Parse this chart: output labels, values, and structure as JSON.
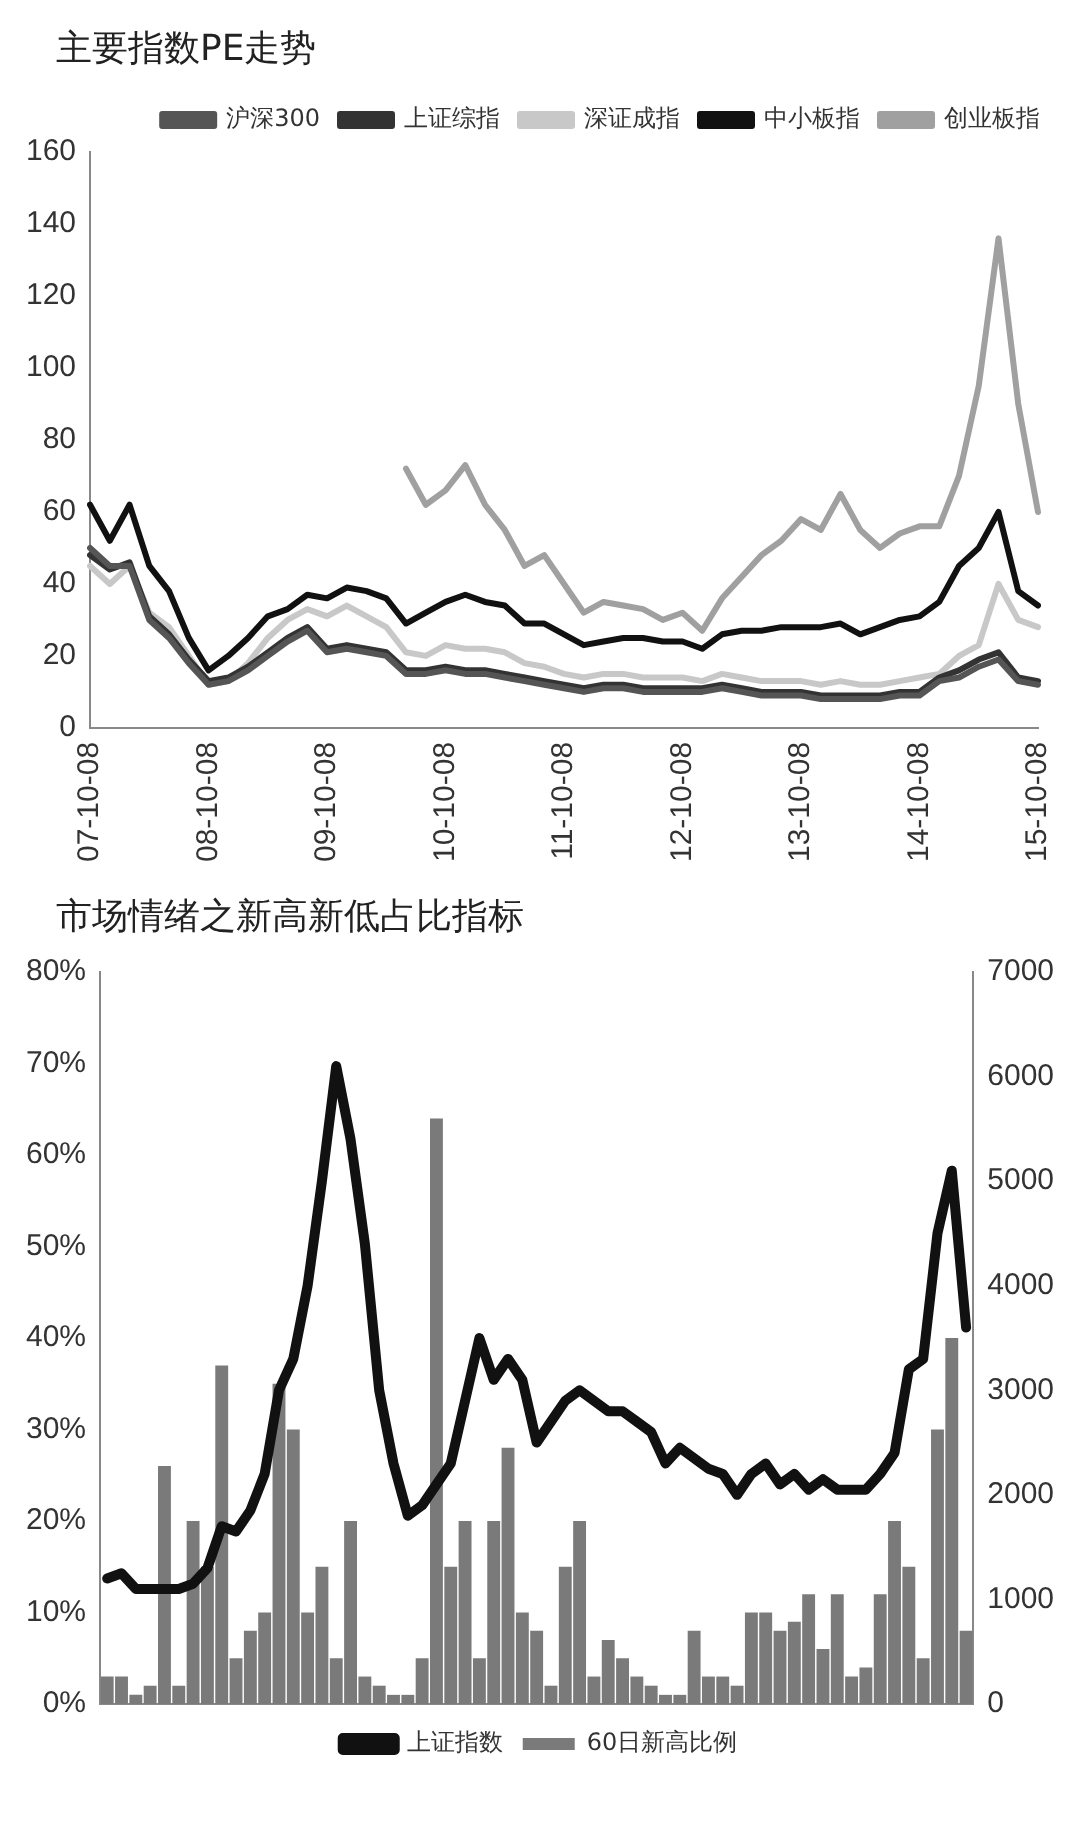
{
  "chart_data": [
    {
      "type": "line",
      "title": "主要指数PE走势",
      "categories": [
        "07-10-08",
        null,
        null,
        null,
        null,
        null,
        "08-10-08",
        null,
        null,
        null,
        null,
        null,
        "09-10-08",
        null,
        null,
        null,
        null,
        null,
        "10-10-08",
        null,
        null,
        null,
        null,
        null,
        "11-10-08",
        null,
        null,
        null,
        null,
        null,
        "12-10-08",
        null,
        null,
        null,
        null,
        null,
        "13-10-08",
        null,
        null,
        null,
        null,
        null,
        "14-10-08",
        null,
        null,
        null,
        null,
        null,
        "15-10-08"
      ],
      "ylim": [
        0,
        160
      ],
      "yticks": [
        0,
        20,
        40,
        60,
        80,
        100,
        120,
        140,
        160
      ],
      "grid": false,
      "legend": "top",
      "marker": "none",
      "series": [
        {
          "name": "沪深300",
          "color": "#555555",
          "values": [
            50,
            45,
            45,
            30,
            25,
            18,
            12,
            13,
            16,
            20,
            24,
            27,
            21,
            22,
            21,
            20,
            15,
            15,
            16,
            15,
            15,
            14,
            13,
            12,
            11,
            10,
            11,
            11,
            10,
            10,
            10,
            10,
            11,
            10,
            9,
            9,
            9,
            8,
            8,
            8,
            8,
            9,
            9,
            13,
            14,
            17,
            19,
            13,
            12
          ]
        },
        {
          "name": "上证综指",
          "color": "#333333",
          "values": [
            48,
            44,
            46,
            31,
            26,
            19,
            13,
            14,
            17,
            21,
            25,
            28,
            22,
            23,
            22,
            21,
            16,
            16,
            17,
            16,
            16,
            15,
            14,
            13,
            12,
            11,
            12,
            12,
            11,
            11,
            11,
            11,
            12,
            11,
            10,
            10,
            10,
            9,
            9,
            9,
            9,
            10,
            10,
            14,
            16,
            19,
            21,
            14,
            13
          ]
        },
        {
          "name": "深证成指",
          "color": "#c8c8c8",
          "values": [
            45,
            40,
            45,
            32,
            28,
            20,
            12,
            13,
            18,
            25,
            30,
            33,
            31,
            34,
            31,
            28,
            21,
            20,
            23,
            22,
            22,
            21,
            18,
            17,
            15,
            14,
            15,
            15,
            14,
            14,
            14,
            13,
            15,
            14,
            13,
            13,
            13,
            12,
            13,
            12,
            12,
            13,
            14,
            15,
            20,
            23,
            40,
            30,
            28
          ]
        },
        {
          "name": "中小板指",
          "color": "#111111",
          "values": [
            62,
            52,
            62,
            45,
            38,
            25,
            16,
            20,
            25,
            31,
            33,
            37,
            36,
            39,
            38,
            36,
            29,
            32,
            35,
            37,
            35,
            34,
            29,
            29,
            26,
            23,
            24,
            25,
            25,
            24,
            24,
            22,
            26,
            27,
            27,
            28,
            28,
            28,
            29,
            26,
            28,
            30,
            31,
            35,
            45,
            50,
            60,
            38,
            34
          ]
        },
        {
          "name": "创业板指",
          "color": "#a0a0a0",
          "values": [
            null,
            null,
            null,
            null,
            null,
            null,
            null,
            null,
            null,
            null,
            null,
            null,
            null,
            null,
            null,
            null,
            72,
            62,
            66,
            73,
            62,
            55,
            45,
            48,
            40,
            32,
            35,
            34,
            33,
            30,
            32,
            27,
            36,
            42,
            48,
            52,
            58,
            55,
            65,
            55,
            50,
            54,
            56,
            56,
            70,
            95,
            136,
            90,
            60
          ]
        }
      ]
    },
    {
      "type": "bar",
      "title": "市场情绪之新高新低占比指标",
      "categories": [
        null,
        null,
        null,
        null,
        null,
        null,
        null,
        null,
        null,
        null,
        null,
        null,
        null,
        null,
        null,
        null,
        null,
        null,
        null,
        null,
        null,
        null,
        null,
        null,
        null,
        null,
        null,
        null,
        null,
        null,
        null,
        null,
        null,
        null,
        null,
        null,
        null,
        null,
        null,
        null,
        null,
        null,
        null,
        null,
        null,
        null,
        null,
        null,
        null,
        null,
        null,
        null,
        null,
        null,
        null,
        null,
        null,
        null,
        null,
        null,
        null
      ],
      "ylim": [
        0,
        80
      ],
      "yticks": [
        {
          "value": 0,
          "label": "0%"
        },
        {
          "value": 10,
          "label": "10%"
        },
        {
          "value": 20,
          "label": "20%"
        },
        {
          "value": 30,
          "label": "30%"
        },
        {
          "value": 40,
          "label": "40%"
        },
        {
          "value": 50,
          "label": "50%"
        },
        {
          "value": 60,
          "label": "60%"
        },
        {
          "value": 70,
          "label": "70%"
        },
        {
          "value": 80,
          "label": "80%"
        }
      ],
      "y2lim": [
        0,
        7000
      ],
      "y2ticks": [
        0,
        1000,
        2000,
        3000,
        4000,
        5000,
        6000,
        7000
      ],
      "grid": false,
      "legend": "bottom",
      "tick_labels": "y",
      "series": [
        {
          "name": "60日新高比例",
          "type": "bar",
          "color": "#7a7a7a",
          "values": [
            3,
            3,
            1,
            2,
            26,
            2,
            20,
            15,
            37,
            5,
            8,
            10,
            35,
            30,
            10,
            15,
            5,
            20,
            3,
            2,
            1,
            1,
            5,
            64,
            15,
            20,
            5,
            20,
            28,
            10,
            8,
            2,
            15,
            20,
            3,
            7,
            5,
            3,
            2,
            1,
            1,
            8,
            3,
            3,
            2,
            10,
            10,
            8,
            9,
            12,
            6,
            12,
            3,
            4,
            12,
            20,
            15,
            5,
            30,
            40,
            8
          ]
        },
        {
          "name": "上证指数",
          "type": "line",
          "axis": "y2",
          "color": "#111111",
          "values": [
            1200,
            1250,
            1100,
            1100,
            1100,
            1100,
            1150,
            1300,
            1700,
            1650,
            1850,
            2200,
            3000,
            3300,
            4000,
            5000,
            6100,
            5400,
            4400,
            3000,
            2300,
            1800,
            1900,
            2100,
            2300,
            2900,
            3500,
            3100,
            3300,
            3100,
            2500,
            2700,
            2900,
            3000,
            2900,
            2800,
            2800,
            2700,
            2600,
            2300,
            2450,
            2350,
            2250,
            2200,
            2000,
            2200,
            2300,
            2100,
            2200,
            2050,
            2150,
            2050,
            2050,
            2050,
            2200,
            2400,
            3200,
            3300,
            4500,
            5100,
            3600
          ]
        }
      ]
    }
  ]
}
